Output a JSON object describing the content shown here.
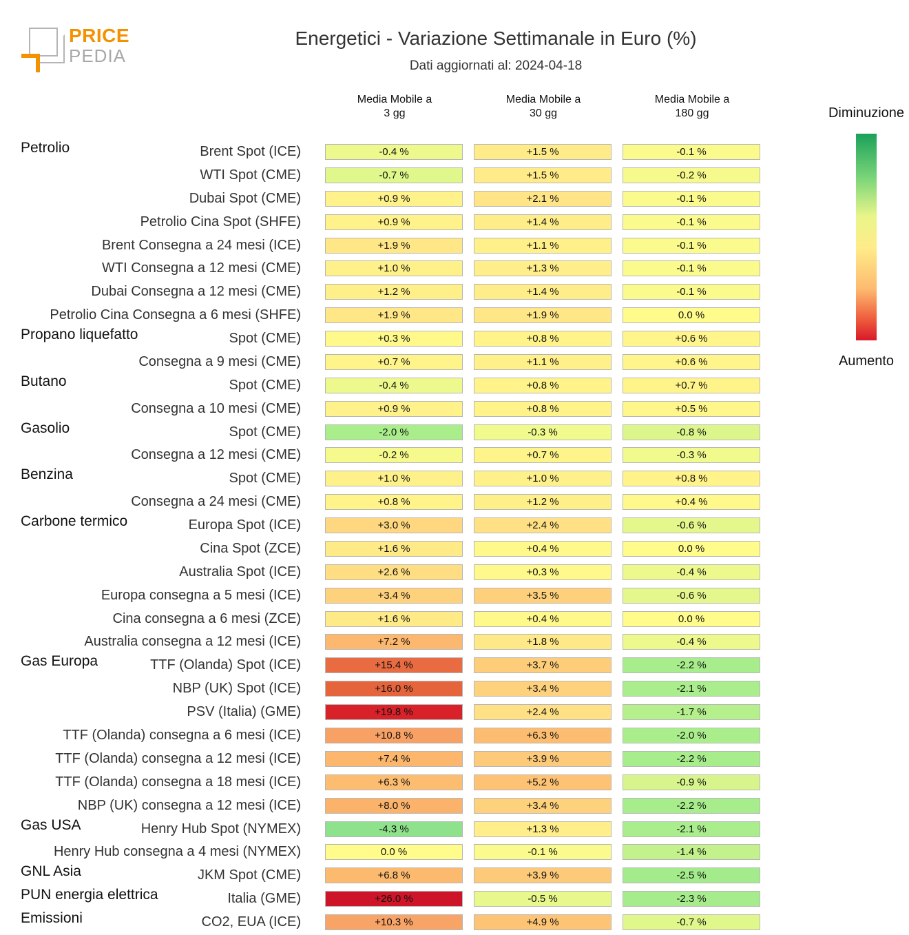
{
  "logo": {
    "line1": "PRICE",
    "line2": "PEDIA"
  },
  "title": "Energetici - Variazione Settimanale in Euro (%)",
  "subtitle": "Dati aggiornati al: 2024-04-18",
  "legend": {
    "top": "Diminuzione",
    "bottom": "Aumento",
    "colors": [
      "#1aa15a",
      "#e9f58a",
      "#fdbb70",
      "#d8182a"
    ]
  },
  "chart_data": {
    "type": "table",
    "columns": [
      {
        "line1": "Media Mobile a",
        "line2": "3 gg"
      },
      {
        "line1": "Media Mobile a",
        "line2": "30 gg"
      },
      {
        "line1": "Media Mobile a",
        "line2": "180 gg"
      }
    ],
    "rows": [
      {
        "group": "Petrolio",
        "label": "Brent Spot (ICE)",
        "values": [
          "-0.4 %",
          "+1.5 %",
          "-0.1 %"
        ]
      },
      {
        "group": "",
        "label": "WTI Spot (CME)",
        "values": [
          "-0.7 %",
          "+1.5 %",
          "-0.2 %"
        ]
      },
      {
        "group": "",
        "label": "Dubai Spot (CME)",
        "values": [
          "+0.9 %",
          "+2.1 %",
          "-0.1 %"
        ]
      },
      {
        "group": "",
        "label": "Petrolio Cina Spot (SHFE)",
        "values": [
          "+0.9 %",
          "+1.4 %",
          "-0.1 %"
        ]
      },
      {
        "group": "",
        "label": "Brent Consegna a 24 mesi (ICE)",
        "values": [
          "+1.9 %",
          "+1.1 %",
          "-0.1 %"
        ]
      },
      {
        "group": "",
        "label": "WTI Consegna a 12 mesi (CME)",
        "values": [
          "+1.0 %",
          "+1.3 %",
          "-0.1 %"
        ]
      },
      {
        "group": "",
        "label": "Dubai Consegna a 12 mesi (CME)",
        "values": [
          "+1.2 %",
          "+1.4 %",
          "-0.1 %"
        ]
      },
      {
        "group": "",
        "label": "Petrolio Cina Consegna a 6 mesi (SHFE)",
        "values": [
          "+1.9 %",
          "+1.9 %",
          "0.0 %"
        ]
      },
      {
        "group": "Propano liquefatto",
        "label": "Spot (CME)",
        "values": [
          "+0.3 %",
          "+0.8 %",
          "+0.6 %"
        ]
      },
      {
        "group": "",
        "label": "Consegna a 9 mesi (CME)",
        "values": [
          "+0.7 %",
          "+1.1 %",
          "+0.6 %"
        ]
      },
      {
        "group": "Butano",
        "label": "Spot (CME)",
        "values": [
          "-0.4 %",
          "+0.8 %",
          "+0.7 %"
        ]
      },
      {
        "group": "",
        "label": "Consegna a 10 mesi (CME)",
        "values": [
          "+0.9 %",
          "+0.8 %",
          "+0.5 %"
        ]
      },
      {
        "group": "Gasolio",
        "label": "Spot (CME)",
        "values": [
          "-2.0 %",
          "-0.3 %",
          "-0.8 %"
        ]
      },
      {
        "group": "",
        "label": "Consegna a 12 mesi (CME)",
        "values": [
          "-0.2 %",
          "+0.7 %",
          "-0.3 %"
        ]
      },
      {
        "group": "Benzina",
        "label": "Spot (CME)",
        "values": [
          "+1.0 %",
          "+1.0 %",
          "+0.8 %"
        ]
      },
      {
        "group": "",
        "label": "Consegna a 24 mesi (CME)",
        "values": [
          "+0.8 %",
          "+1.2 %",
          "+0.4 %"
        ]
      },
      {
        "group": "Carbone termico",
        "label": "Europa Spot (ICE)",
        "values": [
          "+3.0 %",
          "+2.4 %",
          "-0.6 %"
        ]
      },
      {
        "group": "",
        "label": "Cina Spot (ZCE)",
        "values": [
          "+1.6 %",
          "+0.4 %",
          "0.0 %"
        ]
      },
      {
        "group": "",
        "label": "Australia Spot (ICE)",
        "values": [
          "+2.6 %",
          "+0.3 %",
          "-0.4 %"
        ]
      },
      {
        "group": "",
        "label": "Europa consegna a 5 mesi (ICE)",
        "values": [
          "+3.4 %",
          "+3.5 %",
          "-0.6 %"
        ]
      },
      {
        "group": "",
        "label": "Cina consegna a 6 mesi (ZCE)",
        "values": [
          "+1.6 %",
          "+0.4 %",
          "0.0 %"
        ]
      },
      {
        "group": "",
        "label": "Australia consegna a 12 mesi (ICE)",
        "values": [
          "+7.2 %",
          "+1.8 %",
          "-0.4 %"
        ]
      },
      {
        "group": "Gas Europa",
        "label": "TTF (Olanda) Spot (ICE)",
        "values": [
          "+15.4 %",
          "+3.7 %",
          "-2.2 %"
        ]
      },
      {
        "group": "",
        "label": "NBP (UK) Spot (ICE)",
        "values": [
          "+16.0 %",
          "+3.4 %",
          "-2.1 %"
        ]
      },
      {
        "group": "",
        "label": "PSV (Italia) (GME)",
        "values": [
          "+19.8 %",
          "+2.4 %",
          "-1.7 %"
        ]
      },
      {
        "group": "",
        "label": "TTF (Olanda) consegna a 6 mesi (ICE)",
        "values": [
          "+10.8 %",
          "+6.3 %",
          "-2.0 %"
        ]
      },
      {
        "group": "",
        "label": "TTF (Olanda) consegna a 12 mesi (ICE)",
        "values": [
          "+7.4 %",
          "+3.9 %",
          "-2.2 %"
        ]
      },
      {
        "group": "",
        "label": "TTF (Olanda) consegna a 18 mesi (ICE)",
        "values": [
          "+6.3 %",
          "+5.2 %",
          "-0.9 %"
        ]
      },
      {
        "group": "",
        "label": "NBP (UK) consegna a 12 mesi (ICE)",
        "values": [
          "+8.0 %",
          "+3.4 %",
          "-2.2 %"
        ]
      },
      {
        "group": "Gas USA",
        "label": "Henry Hub Spot (NYMEX)",
        "values": [
          "-4.3 %",
          "+1.3 %",
          "-2.1 %"
        ]
      },
      {
        "group": "",
        "label": "Henry Hub consegna a 4 mesi (NYMEX)",
        "values": [
          "0.0 %",
          "-0.1 %",
          "-1.4 %"
        ]
      },
      {
        "group": "GNL Asia",
        "label": "JKM Spot (CME)",
        "values": [
          "+6.8 %",
          "+3.9 %",
          "-2.5 %"
        ]
      },
      {
        "group": "PUN energia elettrica",
        "label": "Italia (GME)",
        "values": [
          "+26.0 %",
          "-0.5 %",
          "-2.3 %"
        ]
      },
      {
        "group": "Emissioni",
        "label": "CO2, EUA (ICE)",
        "values": [
          "+10.3 %",
          "+4.9 %",
          "-0.7 %"
        ]
      }
    ]
  }
}
